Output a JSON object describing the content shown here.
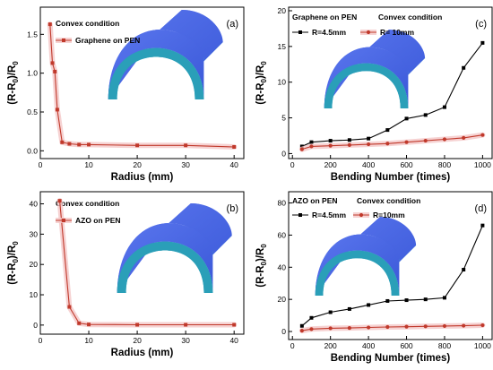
{
  "chart_data": [
    {
      "id": "a",
      "type": "line",
      "panel_label": "(a)",
      "title": "",
      "header": "Convex condition",
      "xlabel": "Radius (mm)",
      "ylabel": "(R-R0)/R0",
      "xlim": [
        0,
        42
      ],
      "ylim": [
        -0.1,
        1.85
      ],
      "xticks": [
        0,
        10,
        20,
        30,
        40
      ],
      "yticks": [
        0.0,
        0.5,
        1.0,
        1.5
      ],
      "legend_position": "top-left",
      "grid": false,
      "series": [
        {
          "name": "Graphene on PEN",
          "color": "#c0392b",
          "marker": "square",
          "x": [
            2,
            2.5,
            3,
            3.5,
            4.5,
            6,
            8,
            10,
            20,
            30,
            40
          ],
          "y": [
            1.63,
            1.13,
            1.02,
            0.53,
            0.11,
            0.09,
            0.08,
            0.08,
            0.07,
            0.07,
            0.05
          ]
        }
      ]
    },
    {
      "id": "b",
      "type": "line",
      "panel_label": "(b)",
      "title": "",
      "header": "Convex condition",
      "xlabel": "Radius (mm)",
      "ylabel": "(R-R0)/R0",
      "xlim": [
        0,
        42
      ],
      "ylim": [
        -3,
        44
      ],
      "xticks": [
        0,
        10,
        20,
        30,
        40
      ],
      "yticks": [
        0,
        10,
        20,
        30,
        40
      ],
      "legend_position": "top-left",
      "grid": false,
      "series": [
        {
          "name": "AZO on PEN",
          "color": "#c0392b",
          "marker": "square",
          "x": [
            4,
            6,
            8,
            10,
            20,
            30,
            40
          ],
          "y": [
            41,
            6,
            0.6,
            0.2,
            0.1,
            0.1,
            0.1
          ]
        }
      ]
    },
    {
      "id": "c",
      "type": "line",
      "panel_label": "(c)",
      "title": "",
      "header": "Graphene on PEN    Convex condition",
      "xlabel": "Bending Number (times)",
      "ylabel": "(R-R0)/R0",
      "xlim": [
        -20,
        1050
      ],
      "ylim": [
        -0.7,
        20.5
      ],
      "xticks": [
        0,
        200,
        400,
        600,
        800,
        1000
      ],
      "yticks": [
        0,
        5,
        10,
        15,
        20
      ],
      "legend_position": "top-left",
      "grid": false,
      "series": [
        {
          "name": "R=4.5mm",
          "color": "#000000",
          "marker": "square",
          "x": [
            50,
            100,
            200,
            300,
            400,
            500,
            600,
            700,
            800,
            900,
            1000
          ],
          "y": [
            1.0,
            1.6,
            1.8,
            1.9,
            2.1,
            3.3,
            4.9,
            5.4,
            6.5,
            12.0,
            15.5
          ]
        },
        {
          "name": "R= 10mm",
          "color": "#c0392b",
          "marker": "circle",
          "x": [
            50,
            100,
            200,
            300,
            400,
            500,
            600,
            700,
            800,
            900,
            1000
          ],
          "y": [
            0.6,
            1.0,
            1.1,
            1.2,
            1.3,
            1.4,
            1.6,
            1.8,
            2.0,
            2.2,
            2.6
          ]
        }
      ]
    },
    {
      "id": "d",
      "type": "line",
      "panel_label": "(d)",
      "title": "",
      "header": "AZO on PEN    Convex condition",
      "xlabel": "Bending Number (times)",
      "ylabel": "(R-R0)/R0",
      "xlim": [
        -20,
        1050
      ],
      "ylim": [
        -5,
        87
      ],
      "xticks": [
        0,
        200,
        400,
        600,
        800,
        1000
      ],
      "yticks": [
        0,
        20,
        40,
        60,
        80
      ],
      "legend_position": "top-left",
      "grid": false,
      "series": [
        {
          "name": "R=4.5mm",
          "color": "#000000",
          "marker": "square",
          "x": [
            50,
            100,
            200,
            300,
            400,
            500,
            600,
            700,
            800,
            900,
            1000
          ],
          "y": [
            3.5,
            8.5,
            12.0,
            14.0,
            16.5,
            19.0,
            19.5,
            20.0,
            21.0,
            38.5,
            66.0
          ]
        },
        {
          "name": "R=10mm",
          "color": "#c0392b",
          "marker": "circle",
          "x": [
            50,
            100,
            200,
            300,
            400,
            500,
            600,
            700,
            800,
            900,
            1000
          ],
          "y": [
            0.5,
            1.5,
            2.0,
            2.2,
            2.5,
            2.8,
            3.0,
            3.2,
            3.4,
            3.6,
            3.9
          ]
        }
      ]
    }
  ],
  "colors": {
    "halo": "#f4c7c7",
    "half_pipe_top": "#3a58d8",
    "half_pipe_end": "#2a9fb8",
    "half_pipe_side": "#3fb4c8"
  }
}
